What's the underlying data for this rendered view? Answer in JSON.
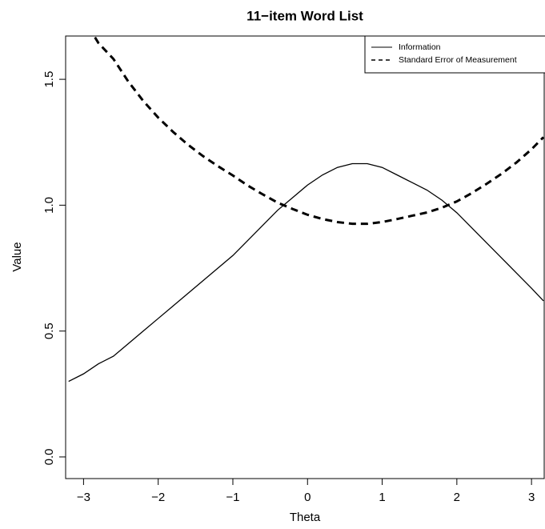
{
  "chart_data": {
    "type": "line",
    "title": "11−item Word List",
    "x_label": "Theta",
    "y_label": "Value",
    "x": [
      -3.2,
      -3.0,
      -2.8,
      -2.6,
      -2.4,
      -2.2,
      -2.0,
      -1.8,
      -1.6,
      -1.4,
      -1.2,
      -1.0,
      -0.8,
      -0.6,
      -0.4,
      -0.2,
      0.0,
      0.2,
      0.4,
      0.6,
      0.8,
      1.0,
      1.2,
      1.4,
      1.6,
      1.8,
      2.0,
      2.2,
      2.4,
      2.6,
      2.8,
      3.0,
      3.16
    ],
    "series": [
      {
        "name": "Information",
        "color": "#000000",
        "linestyle": "solid",
        "values": [
          0.3,
          0.33,
          0.37,
          0.4,
          0.45,
          0.5,
          0.55,
          0.6,
          0.65,
          0.7,
          0.75,
          0.8,
          0.86,
          0.92,
          0.98,
          1.03,
          1.08,
          1.12,
          1.15,
          1.165,
          1.165,
          1.15,
          1.12,
          1.09,
          1.06,
          1.02,
          0.97,
          0.91,
          0.85,
          0.79,
          0.73,
          0.67,
          0.62
        ]
      },
      {
        "name": "Standard Error of Measurement",
        "color": "#000000",
        "linestyle": "dashed",
        "values": [
          1.826,
          1.741,
          1.644,
          1.581,
          1.491,
          1.414,
          1.348,
          1.291,
          1.24,
          1.195,
          1.155,
          1.118,
          1.078,
          1.043,
          1.01,
          0.985,
          0.962,
          0.945,
          0.933,
          0.926,
          0.926,
          0.933,
          0.945,
          0.958,
          0.971,
          0.99,
          1.015,
          1.048,
          1.085,
          1.125,
          1.17,
          1.222,
          1.27
        ]
      }
    ],
    "xlim": [
      -3.24,
      3.17
    ],
    "ylim": [
      -0.086,
      1.672
    ],
    "xticks": [
      {
        "value": -3,
        "label": "−3"
      },
      {
        "value": -2,
        "label": "−2"
      },
      {
        "value": -1,
        "label": "−1"
      },
      0,
      1,
      2,
      3
    ],
    "yticks": [
      {
        "value": 0,
        "label": "0.0"
      },
      {
        "value": 0.5,
        "label": "0.5"
      },
      {
        "value": 1,
        "label": "1.0"
      },
      {
        "value": 1.5,
        "label": "1.5"
      }
    ],
    "grid": false,
    "legend": "topright"
  }
}
